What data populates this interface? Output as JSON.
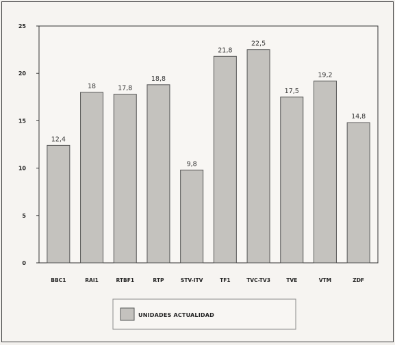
{
  "chart_data": {
    "type": "bar",
    "title": "",
    "xlabel": "",
    "ylabel": "",
    "ylim": [
      0,
      25
    ],
    "yticks": [
      0,
      5,
      10,
      15,
      20,
      25
    ],
    "grid": false,
    "legend_position": "bottom",
    "categories": [
      "BBC1",
      "RAI1",
      "RTBF1",
      "RTP",
      "STV-ITV",
      "TF1",
      "TVC-TV3",
      "TVE",
      "VTM",
      "ZDF"
    ],
    "series": [
      {
        "name": "UNIDADES ACTUALIDAD",
        "values": [
          12.4,
          18,
          17.8,
          18.8,
          9.8,
          21.8,
          22.5,
          17.5,
          19.2,
          14.8
        ],
        "value_labels": [
          "12,4",
          "18",
          "17,8",
          "18,8",
          "9,8",
          "21,8",
          "22,5",
          "17,5",
          "19,2",
          "14,8"
        ]
      }
    ],
    "colors": {
      "bar": "#c4c2be",
      "bar_stroke": "#555555",
      "axis": "#333333"
    }
  }
}
